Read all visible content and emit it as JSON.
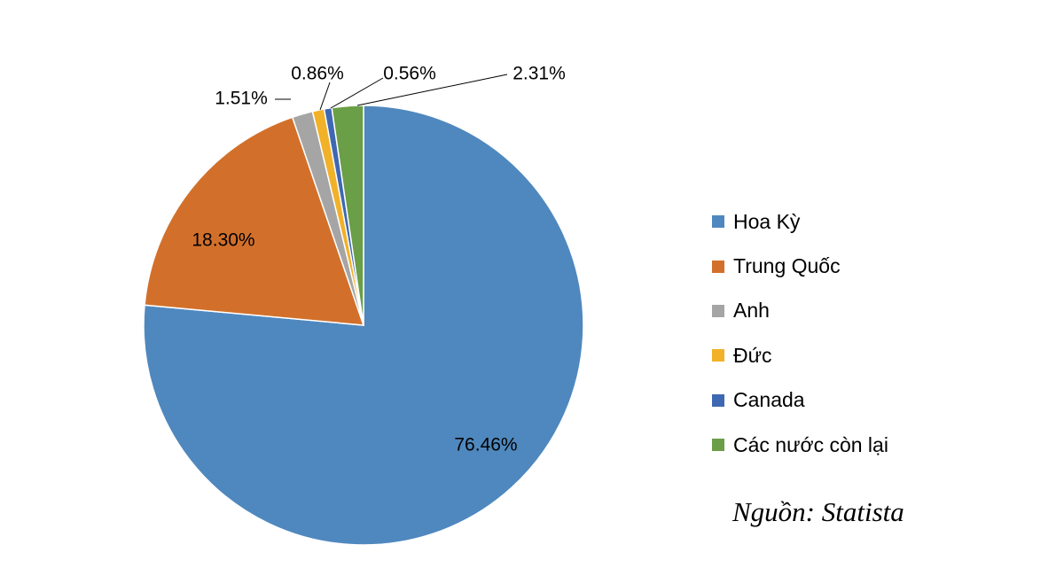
{
  "chart_data": {
    "type": "pie",
    "title": "",
    "categories": [
      "Hoa Kỳ",
      "Trung Quốc",
      "Anh",
      "Đức",
      "Canada",
      "Các nước còn lại"
    ],
    "values": [
      76.46,
      18.3,
      1.51,
      0.86,
      0.56,
      2.31
    ],
    "labels": [
      "76.46%",
      "18.30%",
      "1.51%",
      "0.86%",
      "0.56%",
      "2.31%"
    ],
    "colors": [
      "#4F88BE",
      "#D2702B",
      "#A5A5A5",
      "#F1B128",
      "#3F68B2",
      "#6A9E47"
    ],
    "legend": "right"
  },
  "source": "Nguồn: Statista"
}
